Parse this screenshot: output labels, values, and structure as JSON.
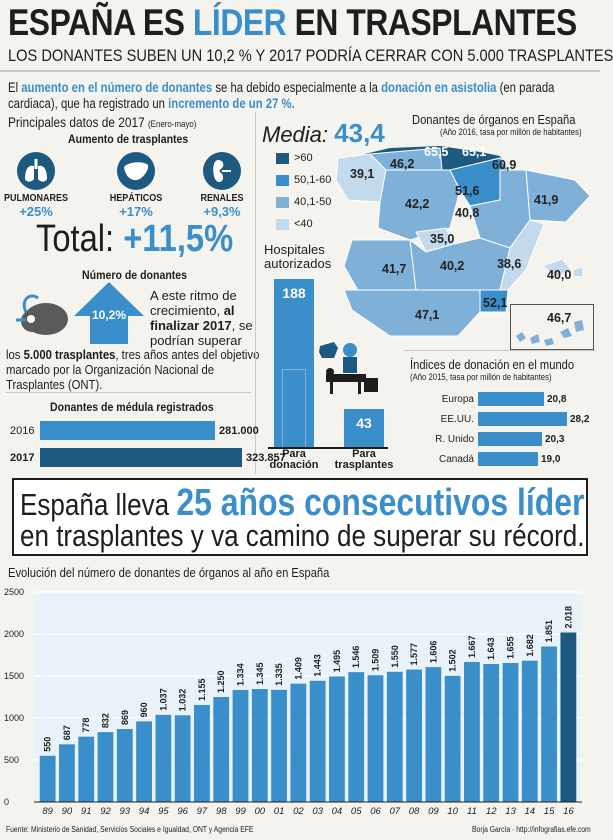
{
  "header": {
    "title_a": "ESPAÑA ES ",
    "title_b": "LÍDER",
    "title_c": " EN TRASPLANTES",
    "subtitle": "LOS DONANTES SUBEN UN 10,2 % Y 2017 PODRÍA CERRAR CON 5.000 TRASPLANTES",
    "intro_1": "El ",
    "intro_2": "aumento en el número de donantes",
    "intro_3": " se ha debido especialmente a la ",
    "intro_4": "donación en asistolia",
    "intro_5": " (en parada cardiaca), que ha registrado un ",
    "intro_6": "incremento de un 27 %."
  },
  "principales": {
    "title": "Principales datos de 2017",
    "title_small": "(Enero-mayo)",
    "aumento_title": "Aumento de trasplantes",
    "organs": [
      {
        "icon": "lungs-icon",
        "label": "PULMONARES",
        "pct": "+25%"
      },
      {
        "icon": "liver-icon",
        "label": "HEPÁTICOS",
        "pct": "+17%"
      },
      {
        "icon": "kidney-icon",
        "label": "RENALES",
        "pct": "+9,3%"
      }
    ],
    "total_label": "Total: ",
    "total_value": "+11,5%",
    "numdon_title": "Número de donantes",
    "numdon_value": "10,2%",
    "numdon_text_1": "A este ritmo de crecimiento, ",
    "numdon_text_2": "al finalizar 2017",
    "numdon_text_3": ", se podrían superar",
    "numdon_text_4": "los ",
    "numdon_text_5": "5.000 trasplantes",
    "numdon_text_6": ", tres años antes del objetivo marcado por la Organización Nacional de Trasplantes (ONT).",
    "medula_title": "Donantes de médula registrados",
    "medula": [
      {
        "year": "2016",
        "value": 281000,
        "label": "281.000"
      },
      {
        "year": "2017",
        "value": 323857,
        "label": "323.857"
      }
    ]
  },
  "map": {
    "media_label": "Media: ",
    "media_value": "43,4",
    "title": "Donantes de órganos en España",
    "subtitle": "(Año 2016, tasa por millón de habitantes)",
    "legend": [
      {
        "label": ">60",
        "color": "#1e5a80"
      },
      {
        "label": "50,1-60",
        "color": "#3a8fcb"
      },
      {
        "label": "40,1-50",
        "color": "#7fb0d8"
      },
      {
        "label": "<40",
        "color": "#c3d9ec"
      }
    ],
    "values": [
      {
        "label": "65,5",
        "cls": ">60"
      },
      {
        "label": "65,1",
        "cls": ">60"
      },
      {
        "label": "46,2",
        "cls": "40,1-50"
      },
      {
        "label": "39,1",
        "cls": "<40"
      },
      {
        "label": "60,9",
        "cls": "50,1-60"
      },
      {
        "label": "51,6",
        "cls": "50,1-60"
      },
      {
        "label": "42,2",
        "cls": "40,1-50"
      },
      {
        "label": "40,8",
        "cls": "40,1-50"
      },
      {
        "label": "41,9",
        "cls": "40,1-50"
      },
      {
        "label": "35,0",
        "cls": "<40"
      },
      {
        "label": "41,7",
        "cls": "40,1-50"
      },
      {
        "label": "40,2",
        "cls": "40,1-50"
      },
      {
        "label": "38,6",
        "cls": "<40"
      },
      {
        "label": "40,0",
        "cls": "<40"
      },
      {
        "label": "52,1",
        "cls": "50,1-60"
      },
      {
        "label": "47,1",
        "cls": "40,1-50"
      },
      {
        "label": "46,7",
        "cls": "40,1-50"
      }
    ]
  },
  "hospitales": {
    "title": "Hospitales autorizados",
    "items": [
      {
        "value": 188,
        "label": "188",
        "caption_1": "Para",
        "caption_2": "donación"
      },
      {
        "value": 43,
        "label": "43",
        "caption_1": "Para",
        "caption_2": "trasplantes"
      }
    ]
  },
  "world": {
    "title": "Índices de donación en el mundo",
    "subtitle": "(Año 2015, tasa por millón de habitantes)",
    "items": [
      {
        "name": "Europa",
        "value": 20.8,
        "label": "20,8"
      },
      {
        "name": "EE.UU.",
        "value": 28.2,
        "label": "28,2"
      },
      {
        "name": "R. Unido",
        "value": 20.3,
        "label": "20,3"
      },
      {
        "name": "Canadá",
        "value": 19.0,
        "label": "19,0"
      }
    ]
  },
  "banner": {
    "line1_a": "España lleva ",
    "line1_b": "25 años consecutivos líder",
    "line2": "en trasplantes y va camino de superar su récord."
  },
  "chart_data": {
    "type": "bar",
    "title": "Evolución del número de donantes de órganos al año en España",
    "categories": [
      "89",
      "90",
      "91",
      "92",
      "93",
      "94",
      "95",
      "96",
      "97",
      "98",
      "99",
      "00",
      "01",
      "02",
      "03",
      "04",
      "05",
      "06",
      "07",
      "08",
      "09",
      "10",
      "11",
      "12",
      "13",
      "14",
      "15",
      "16"
    ],
    "values": [
      550,
      687,
      778,
      832,
      869,
      960,
      1037,
      1032,
      1155,
      1250,
      1334,
      1345,
      1335,
      1409,
      1443,
      1495,
      1546,
      1509,
      1550,
      1577,
      1606,
      1502,
      1667,
      1643,
      1655,
      1682,
      1851,
      2018
    ],
    "value_labels": [
      "550",
      "687",
      "778",
      "832",
      "869",
      "960",
      "1.037",
      "1.032",
      "1.155",
      "1.250",
      "1.334",
      "1.345",
      "1.335",
      "1.409",
      "1.443",
      "1.495",
      "1.546",
      "1.509",
      "1.550",
      "1.577",
      "1.606",
      "1.502",
      "1.667",
      "1.643",
      "1.655",
      "1.682",
      "1.851",
      "2.018"
    ],
    "yticks": [
      "2500",
      "2000",
      "1500",
      "1000",
      "500",
      "0"
    ],
    "ylim": [
      0,
      2500
    ],
    "grid": true
  },
  "footer": {
    "source": "Fuente: Ministerio de Sanidad, Servicios Sociales e Igualdad, ONT y Agencia EFE",
    "credit": "Borja García  ·  http://infografias.efe.com"
  }
}
